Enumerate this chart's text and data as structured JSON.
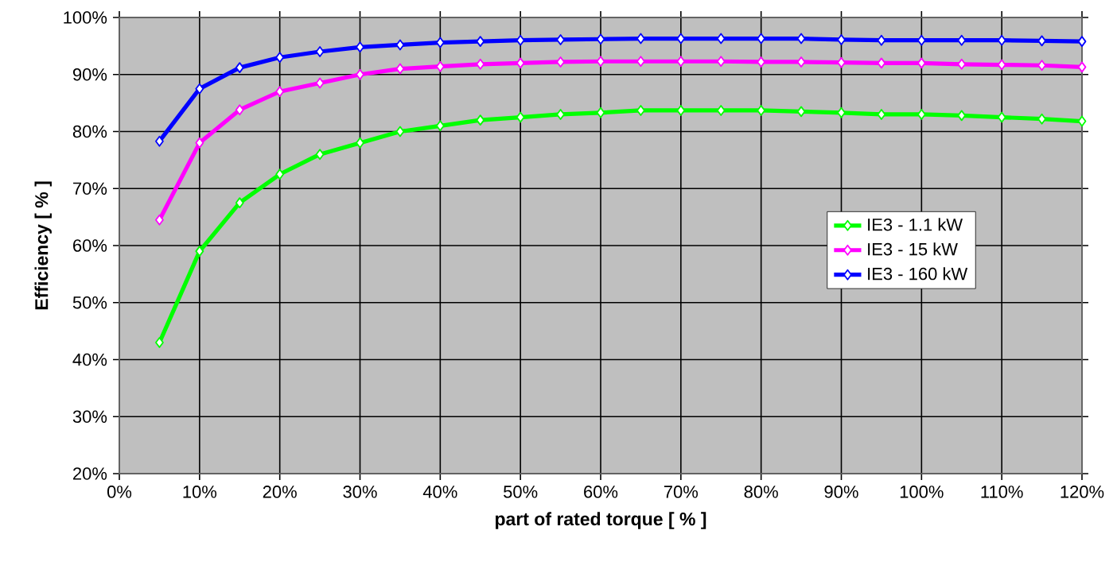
{
  "chart_data": {
    "type": "line",
    "xlabel": "part of rated torque [ % ]",
    "ylabel": "Efficiency [ % ]",
    "x": [
      5,
      10,
      15,
      20,
      25,
      30,
      35,
      40,
      45,
      50,
      55,
      60,
      65,
      70,
      75,
      80,
      85,
      90,
      95,
      100,
      105,
      110,
      115,
      120
    ],
    "series": [
      {
        "name": "IE3 - 1.1 kW",
        "color": "#00ff00",
        "values": [
          43,
          59,
          67.5,
          72.5,
          76,
          78,
          80,
          81,
          82,
          82.5,
          83,
          83.3,
          83.7,
          83.7,
          83.7,
          83.7,
          83.5,
          83.3,
          83,
          83,
          82.8,
          82.5,
          82.2,
          81.8
        ]
      },
      {
        "name": "IE3 - 15 kW",
        "color": "#ff00ff",
        "values": [
          64.5,
          78,
          83.8,
          87,
          88.5,
          90,
          91,
          91.4,
          91.8,
          92,
          92.2,
          92.3,
          92.3,
          92.3,
          92.3,
          92.2,
          92.2,
          92.1,
          92,
          92,
          91.8,
          91.7,
          91.6,
          91.3
        ]
      },
      {
        "name": "IE3 - 160 kW",
        "color": "#0000ff",
        "values": [
          78.3,
          87.5,
          91.2,
          93,
          94,
          94.8,
          95.2,
          95.6,
          95.8,
          96,
          96.1,
          96.2,
          96.3,
          96.3,
          96.3,
          96.3,
          96.3,
          96.1,
          96,
          96,
          96,
          96,
          95.9,
          95.8
        ]
      }
    ],
    "xlim": [
      0,
      120
    ],
    "ylim": [
      20,
      100
    ],
    "xticks": [
      {
        "value": 0,
        "label": "0%"
      },
      {
        "value": 10,
        "label": "10%"
      },
      {
        "value": 20,
        "label": "20%"
      },
      {
        "value": 30,
        "label": "30%"
      },
      {
        "value": 40,
        "label": "40%"
      },
      {
        "value": 50,
        "label": "50%"
      },
      {
        "value": 60,
        "label": "60%"
      },
      {
        "value": 70,
        "label": "70%"
      },
      {
        "value": 80,
        "label": "80%"
      },
      {
        "value": 90,
        "label": "90%"
      },
      {
        "value": 100,
        "label": "100%"
      },
      {
        "value": 110,
        "label": "110%"
      },
      {
        "value": 120,
        "label": "120%"
      }
    ],
    "yticks": [
      {
        "value": 20,
        "label": "20%"
      },
      {
        "value": 30,
        "label": "30%"
      },
      {
        "value": 40,
        "label": "40%"
      },
      {
        "value": 50,
        "label": "50%"
      },
      {
        "value": 60,
        "label": "60%"
      },
      {
        "value": 70,
        "label": "70%"
      },
      {
        "value": 80,
        "label": "80%"
      },
      {
        "value": 90,
        "label": "90%"
      },
      {
        "value": 100,
        "label": "100%"
      }
    ],
    "grid": true,
    "legend": "right",
    "marker": "diamond",
    "line_style": "solid"
  }
}
